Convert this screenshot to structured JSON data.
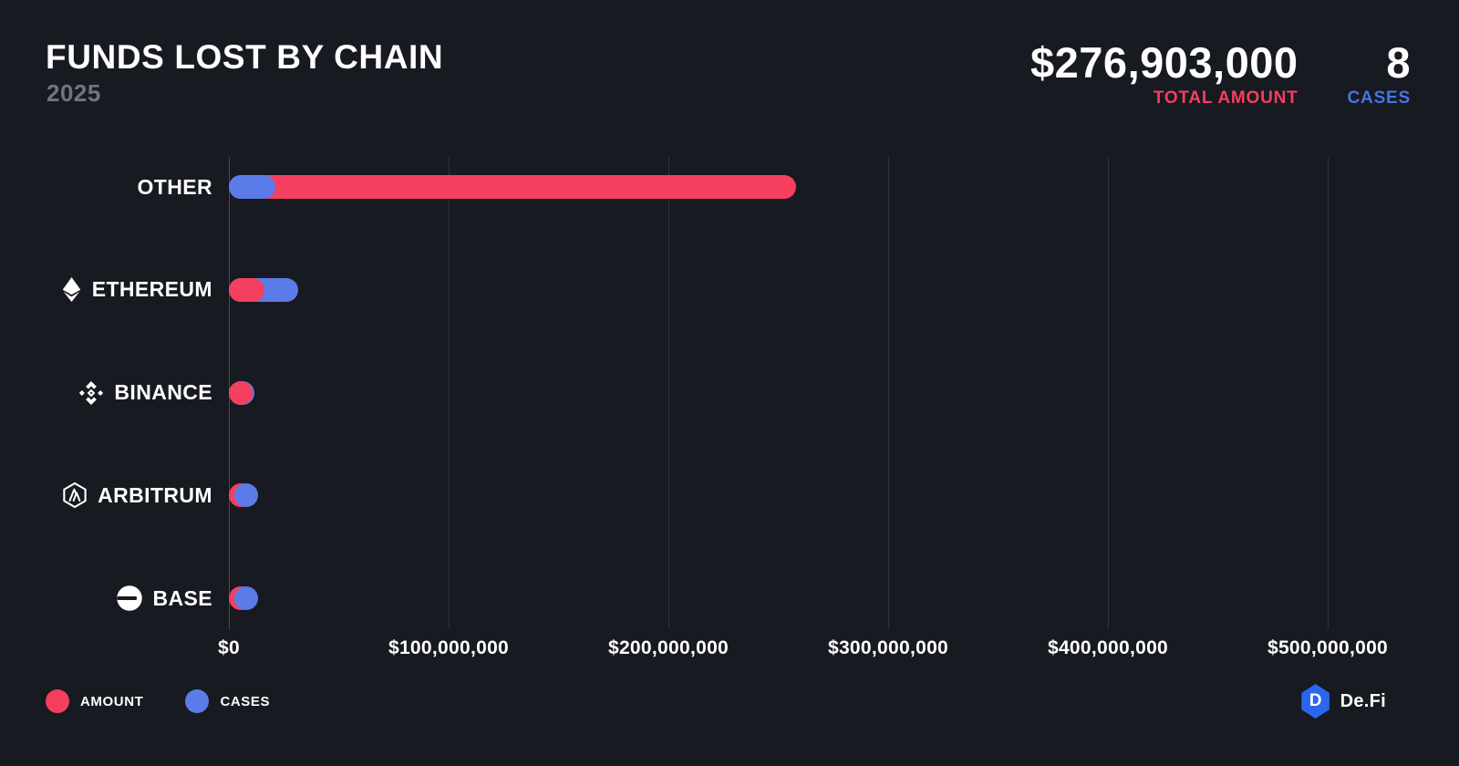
{
  "header": {
    "title": "FUNDS LOST BY CHAIN",
    "year": "2025",
    "stats": {
      "total_amount_value": "$276,903,000",
      "total_amount_label": "TOTAL AMOUNT",
      "cases_value": "8",
      "cases_label": "CASES"
    }
  },
  "colors": {
    "background": "#171a20",
    "amount": "#f43f5e",
    "cases": "#5b7ce8",
    "cases_label_text": "#4673e6",
    "grid_line": "#2e333b",
    "zero_line": "#454b54",
    "year_text": "#6f7580",
    "text": "#ffffff",
    "brand_blue": "#2b65f0"
  },
  "chart_data": {
    "type": "bar",
    "orientation": "horizontal",
    "title": "FUNDS LOST BY CHAIN",
    "subtitle": "2025",
    "categories": [
      "OTHER",
      "ETHEREUM",
      "BINANCE",
      "ARBITRUM",
      "BASE"
    ],
    "icons": [
      null,
      "ethereum-icon",
      "binance-icon",
      "arbitrum-icon",
      "base-icon"
    ],
    "series": [
      {
        "name": "AMOUNT",
        "unit": "USD",
        "color": "#f43f5e",
        "values": [
          258000000,
          16100000,
          1500000,
          700000,
          553000
        ]
      },
      {
        "name": "CASES",
        "color": "#5b7ce8",
        "values": [
          2,
          3,
          1,
          1,
          1
        ]
      }
    ],
    "totals": {
      "amount_usd": 276903000,
      "cases": 8
    },
    "x_axis": {
      "tick_labels": [
        "$0",
        "$100,000,000",
        "$200,000,000",
        "$300,000,000",
        "$400,000,000",
        "$500,000,000"
      ],
      "tick_values_usd": [
        0,
        100000000,
        200000000,
        300000000,
        400000000,
        500000000
      ],
      "grid": true
    },
    "legend_position": "bottom-left"
  },
  "legend": [
    {
      "label": "AMOUNT",
      "color": "#f43f5e"
    },
    {
      "label": "CASES",
      "color": "#5b7ce8"
    }
  ],
  "footer": {
    "brand": "De.Fi"
  }
}
